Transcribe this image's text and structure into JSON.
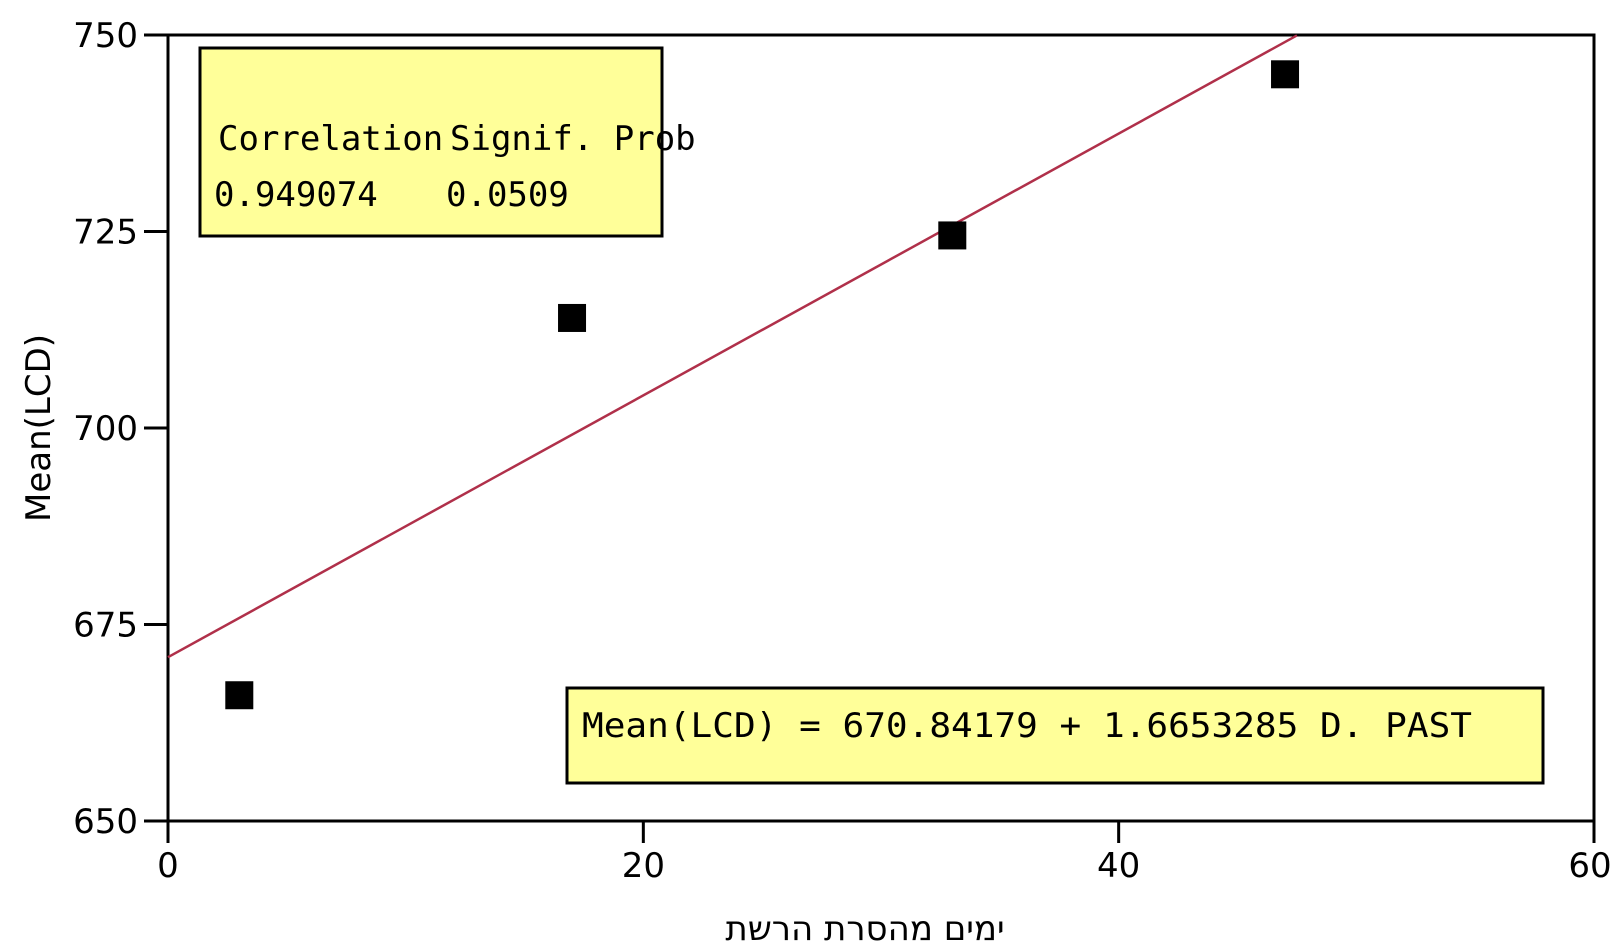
{
  "chart_data": {
    "type": "scatter",
    "xlabel": "ימים מהסרת הרשת",
    "ylabel": "Mean(LCD)",
    "xlim": [
      0,
      60
    ],
    "ylim": [
      650,
      750
    ],
    "x_ticks": [
      "0",
      "20",
      "40",
      "60"
    ],
    "y_ticks": [
      "650",
      "675",
      "700",
      "725",
      "750"
    ],
    "x_tick_values": [
      0,
      20,
      40,
      60
    ],
    "y_tick_values": [
      650,
      675,
      700,
      725,
      750
    ],
    "points": [
      {
        "x": 3,
        "y": 666
      },
      {
        "x": 17,
        "y": 714
      },
      {
        "x": 33,
        "y": 724.5
      },
      {
        "x": 47,
        "y": 745
      }
    ],
    "fit_line": {
      "intercept": 670.84179,
      "slope": 1.6653285,
      "x_range": [
        0,
        47.5
      ]
    },
    "stats": {
      "correlation_label": "Correlation",
      "prob_label": "Signif. Prob",
      "correlation_value": "0.949074",
      "prob_value": "0.0509"
    },
    "equation": "Mean(LCD) = 670.84179 + 1.6653285 D. PAST",
    "colors": {
      "fit_line": "#b0304a",
      "box_fill": "#ffff99",
      "marker": "#000000"
    },
    "grid": false,
    "legend": "none"
  }
}
